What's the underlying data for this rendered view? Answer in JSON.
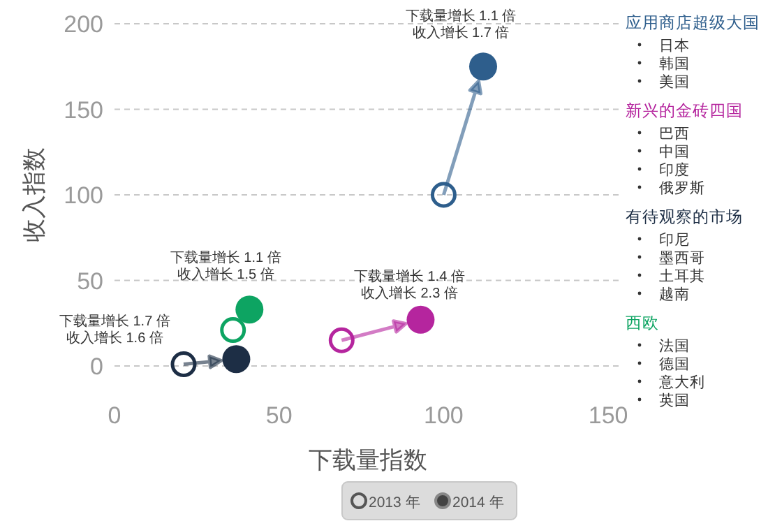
{
  "chart_data": {
    "type": "scatter",
    "xlabel": "下载量指数",
    "ylabel": "收入指数",
    "xlim": [
      0,
      154
    ],
    "ylim": [
      0,
      200
    ],
    "xticks": [
      0,
      50,
      100,
      150
    ],
    "yticks": [
      0,
      50,
      100,
      150,
      200
    ],
    "grid": "y",
    "legend": "right",
    "marker": "circle",
    "series": [
      {
        "name": "应用商店超级大国",
        "color": "#2e5e8c",
        "x": [
          100,
          112
        ],
        "values": [
          100,
          175
        ]
      },
      {
        "name": "新兴的金砖四国",
        "color": "#b5259e",
        "x": [
          69,
          93
        ],
        "values": [
          15,
          27
        ]
      },
      {
        "name": "有待观察的市场",
        "color": "#1d2e45",
        "x": [
          21,
          37
        ],
        "values": [
          1,
          4
        ]
      },
      {
        "name": "西欧",
        "color": "#0da462",
        "x": [
          36,
          41
        ],
        "values": [
          21,
          33
        ]
      }
    ],
    "annotations": [
      "下载量增长 1.1 倍",
      "收入增长 1.7 倍",
      "下载量增长 1.4 倍",
      "收入增长 2.3 倍",
      "下载量增长 1.7 倍",
      "收入增长 1.6 倍",
      "下载量增长 1.1 倍",
      "收入增长 1.5 倍",
      "日本",
      "韩国",
      "美国",
      "巴西",
      "中国",
      "印度",
      "俄罗斯",
      "印尼",
      "墨西哥",
      "土耳其",
      "越南",
      "法国",
      "德国",
      "意大利",
      "英国",
      "2013 年",
      "2014 年"
    ]
  }
}
